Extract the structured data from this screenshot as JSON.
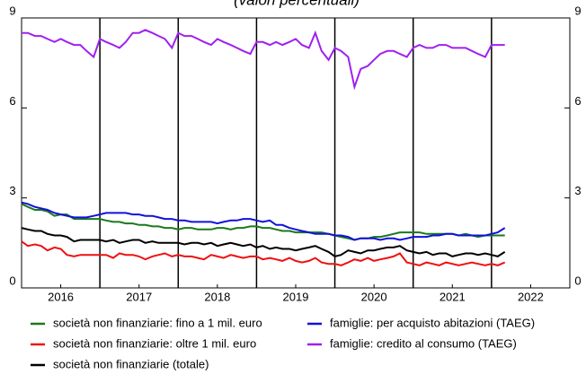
{
  "chart_data": {
    "type": "line",
    "subtitle": "(valori percentuali)",
    "x": [
      2016.0,
      2016.08,
      2016.17,
      2016.25,
      2016.33,
      2016.42,
      2016.5,
      2016.58,
      2016.67,
      2016.75,
      2016.83,
      2016.92,
      2017.0,
      2017.08,
      2017.17,
      2017.25,
      2017.33,
      2017.42,
      2017.5,
      2017.58,
      2017.67,
      2017.75,
      2017.83,
      2017.92,
      2018.0,
      2018.08,
      2018.17,
      2018.25,
      2018.33,
      2018.42,
      2018.5,
      2018.58,
      2018.67,
      2018.75,
      2018.83,
      2018.92,
      2019.0,
      2019.08,
      2019.17,
      2019.25,
      2019.33,
      2019.42,
      2019.5,
      2019.58,
      2019.67,
      2019.75,
      2019.83,
      2019.92,
      2020.0,
      2020.08,
      2020.17,
      2020.25,
      2020.33,
      2020.42,
      2020.5,
      2020.58,
      2020.67,
      2020.75,
      2020.83,
      2020.92,
      2021.0,
      2021.08,
      2021.17,
      2021.25,
      2021.33,
      2021.42,
      2021.5,
      2021.58,
      2021.67,
      2021.75,
      2021.83,
      2021.92,
      2022.0,
      2022.08,
      2022.17
    ],
    "series": [
      {
        "name": "società non finanziarie: fino a 1 mil. euro",
        "color": "#1a7a1a",
        "values": [
          2.8,
          2.7,
          2.6,
          2.6,
          2.55,
          2.4,
          2.45,
          2.45,
          2.3,
          2.3,
          2.3,
          2.3,
          2.3,
          2.25,
          2.2,
          2.2,
          2.15,
          2.15,
          2.1,
          2.1,
          2.05,
          2.05,
          2.0,
          2.0,
          1.95,
          2.0,
          2.0,
          1.95,
          1.95,
          1.95,
          2.0,
          2.0,
          1.95,
          2.0,
          2.0,
          2.05,
          2.05,
          2.0,
          2.0,
          1.95,
          1.9,
          1.9,
          1.85,
          1.85,
          1.85,
          1.85,
          1.85,
          1.8,
          1.75,
          1.7,
          1.65,
          1.6,
          1.65,
          1.65,
          1.7,
          1.7,
          1.75,
          1.8,
          1.85,
          1.85,
          1.85,
          1.85,
          1.8,
          1.8,
          1.8,
          1.8,
          1.8,
          1.75,
          1.8,
          1.75,
          1.7,
          1.75,
          1.75,
          1.75,
          1.75
        ]
      },
      {
        "name": "società non finanziarie: oltre 1 mil. euro",
        "color": "#ee1111",
        "values": [
          1.55,
          1.4,
          1.45,
          1.4,
          1.25,
          1.35,
          1.3,
          1.1,
          1.05,
          1.1,
          1.1,
          1.1,
          1.1,
          1.1,
          1.0,
          1.15,
          1.1,
          1.1,
          1.05,
          0.95,
          1.05,
          1.1,
          1.15,
          1.05,
          1.1,
          1.05,
          1.05,
          1.0,
          0.95,
          1.1,
          1.05,
          1.0,
          1.1,
          1.05,
          1.0,
          1.05,
          1.05,
          0.95,
          1.0,
          0.95,
          0.9,
          1.0,
          0.9,
          0.85,
          0.9,
          1.0,
          0.85,
          0.8,
          0.8,
          0.75,
          0.85,
          0.95,
          0.9,
          1.0,
          0.9,
          0.95,
          1.0,
          1.05,
          1.15,
          0.85,
          0.8,
          0.75,
          0.85,
          0.8,
          0.75,
          0.85,
          0.8,
          0.75,
          0.8,
          0.85,
          0.8,
          0.75,
          0.8,
          0.75,
          0.85
        ]
      },
      {
        "name": "società non finanziarie (totale)",
        "color": "#000000",
        "values": [
          2.0,
          1.95,
          1.9,
          1.9,
          1.8,
          1.75,
          1.75,
          1.7,
          1.55,
          1.6,
          1.6,
          1.6,
          1.6,
          1.55,
          1.6,
          1.5,
          1.55,
          1.6,
          1.6,
          1.5,
          1.55,
          1.5,
          1.5,
          1.5,
          1.5,
          1.45,
          1.5,
          1.5,
          1.45,
          1.5,
          1.4,
          1.45,
          1.5,
          1.45,
          1.4,
          1.45,
          1.35,
          1.4,
          1.3,
          1.35,
          1.3,
          1.3,
          1.25,
          1.3,
          1.35,
          1.4,
          1.3,
          1.2,
          1.05,
          1.1,
          1.25,
          1.2,
          1.15,
          1.25,
          1.25,
          1.3,
          1.35,
          1.35,
          1.4,
          1.25,
          1.2,
          1.15,
          1.2,
          1.1,
          1.15,
          1.15,
          1.05,
          1.1,
          1.15,
          1.15,
          1.1,
          1.15,
          1.1,
          1.05,
          1.2
        ]
      },
      {
        "name": "famiglie: per acquisto abitazioni (TAEG)",
        "color": "#1111dd",
        "values": [
          2.85,
          2.8,
          2.7,
          2.65,
          2.6,
          2.5,
          2.45,
          2.4,
          2.35,
          2.35,
          2.35,
          2.4,
          2.45,
          2.5,
          2.5,
          2.5,
          2.5,
          2.45,
          2.45,
          2.4,
          2.4,
          2.35,
          2.3,
          2.3,
          2.25,
          2.25,
          2.2,
          2.2,
          2.2,
          2.2,
          2.15,
          2.2,
          2.25,
          2.25,
          2.3,
          2.3,
          2.25,
          2.2,
          2.25,
          2.1,
          2.1,
          2.0,
          1.95,
          1.9,
          1.85,
          1.8,
          1.8,
          1.8,
          1.75,
          1.75,
          1.7,
          1.6,
          1.65,
          1.65,
          1.65,
          1.6,
          1.65,
          1.65,
          1.6,
          1.65,
          1.7,
          1.7,
          1.7,
          1.75,
          1.75,
          1.8,
          1.8,
          1.75,
          1.75,
          1.75,
          1.75,
          1.75,
          1.8,
          1.85,
          2.0
        ]
      },
      {
        "name": "famiglie: credito al consumo (TAEG)",
        "color": "#a020f0",
        "values": [
          8.5,
          8.5,
          8.4,
          8.4,
          8.3,
          8.2,
          8.3,
          8.2,
          8.1,
          8.1,
          7.9,
          7.7,
          8.3,
          8.2,
          8.1,
          8.0,
          8.2,
          8.5,
          8.5,
          8.6,
          8.5,
          8.4,
          8.3,
          8.0,
          8.5,
          8.4,
          8.4,
          8.3,
          8.2,
          8.1,
          8.3,
          8.2,
          8.1,
          8.0,
          7.9,
          7.8,
          8.2,
          8.2,
          8.1,
          8.2,
          8.1,
          8.2,
          8.3,
          8.1,
          8.0,
          8.5,
          7.9,
          7.6,
          8.0,
          7.9,
          7.7,
          6.7,
          7.3,
          7.4,
          7.6,
          7.8,
          7.9,
          7.9,
          7.8,
          7.7,
          8.0,
          8.1,
          8.0,
          8.0,
          8.1,
          8.1,
          8.0,
          8.0,
          8.0,
          7.9,
          7.8,
          7.7,
          8.1,
          8.1,
          8.1
        ]
      }
    ],
    "xlim": [
      2016,
      2023
    ],
    "xticks": [
      {
        "value": 2016.5,
        "label": "2016"
      },
      {
        "value": 2017.5,
        "label": "2017"
      },
      {
        "value": 2018.5,
        "label": "2018"
      },
      {
        "value": 2019.5,
        "label": "2019"
      },
      {
        "value": 2020.5,
        "label": "2020"
      },
      {
        "value": 2021.5,
        "label": "2021"
      },
      {
        "value": 2022.5,
        "label": "2022"
      }
    ],
    "year_lines": [
      2017,
      2018,
      2019,
      2020,
      2021,
      2022
    ],
    "ylim": [
      0,
      9
    ],
    "yticks": [
      0,
      3,
      6,
      9
    ],
    "y2lim": [
      0,
      9
    ],
    "y2ticks": [
      0,
      3,
      6,
      9
    ]
  }
}
